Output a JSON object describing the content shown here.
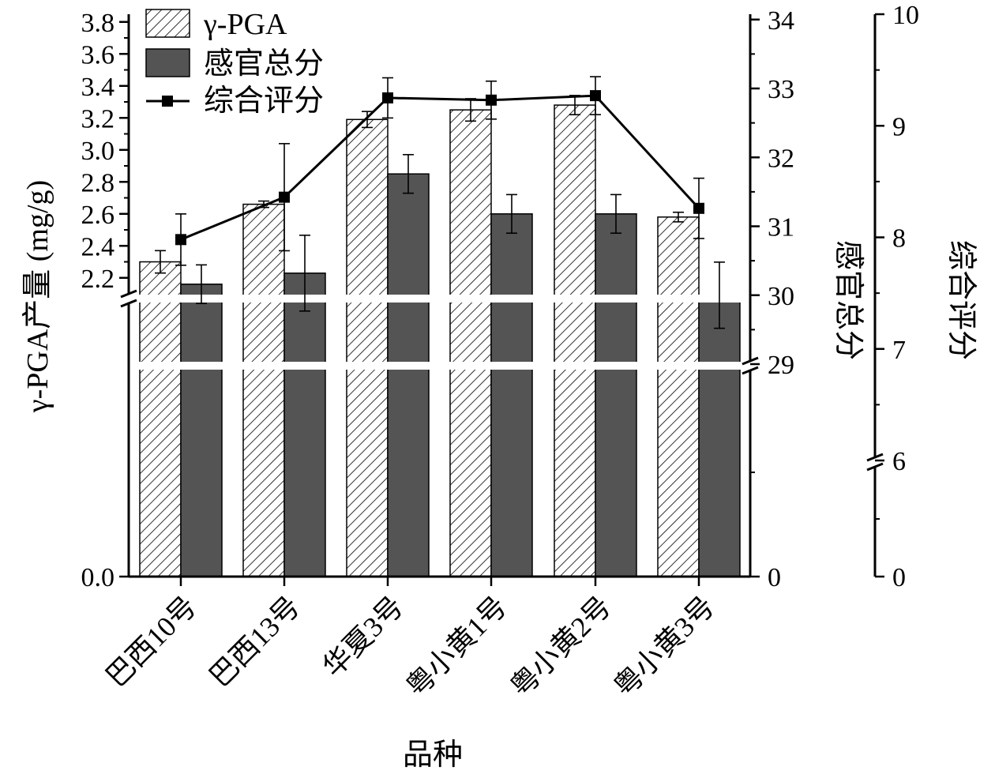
{
  "chart_data": {
    "type": "bar",
    "categories": [
      "巴西10号",
      "巴西13号",
      "华夏3号",
      "粤小黄1号",
      "粤小黄2号",
      "粤小黄3号"
    ],
    "xlabel": "品种",
    "series": [
      {
        "name": "γ-PGA",
        "kind": "bar",
        "axis": "left",
        "pattern": "hatched",
        "values": [
          2.3,
          2.66,
          3.19,
          3.25,
          3.28,
          2.58
        ],
        "errors": [
          0.07,
          0.02,
          0.05,
          0.07,
          0.06,
          0.03
        ]
      },
      {
        "name": "感官总分",
        "kind": "bar",
        "axis": "right1",
        "color": "#545454",
        "values": [
          30.16,
          30.32,
          31.76,
          31.18,
          31.18,
          30.0
        ],
        "errors": [
          0.28,
          0.55,
          0.28,
          0.28,
          0.28,
          0.48
        ]
      },
      {
        "name": "综合评分",
        "kind": "line",
        "axis": "right2",
        "marker": "square",
        "color": "#000000",
        "values": [
          7.98,
          8.36,
          9.25,
          9.23,
          9.27,
          8.26
        ],
        "errors": [
          0.23,
          0.48,
          0.18,
          0.17,
          0.17,
          0.27
        ]
      }
    ],
    "axes": {
      "left": {
        "label": "γ-PGA产量 (mg/g)",
        "range": [
          0.0,
          3.8
        ],
        "break": [
          0.0,
          2.1
        ],
        "ticks": [
          0.0,
          2.2,
          2.4,
          2.6,
          2.8,
          3.0,
          3.2,
          3.4,
          3.6,
          3.8
        ],
        "tick_labels": [
          "0.0",
          "2.2",
          "2.4",
          "2.6",
          "2.8",
          "3.0",
          "3.2",
          "3.4",
          "3.6",
          "3.8"
        ]
      },
      "right1": {
        "label": "感官总分",
        "range": [
          0,
          34
        ],
        "break": [
          0,
          29
        ],
        "ticks": [
          0,
          29,
          30,
          31,
          32,
          33,
          34
        ],
        "tick_labels": [
          "0",
          "29",
          "30",
          "31",
          "32",
          "33",
          "34"
        ]
      },
      "right2": {
        "label": "综合评分",
        "range": [
          0,
          10
        ],
        "break": [
          0,
          6
        ],
        "ticks": [
          0,
          6,
          7,
          8,
          9,
          10
        ],
        "tick_labels": [
          "0",
          "6",
          "7",
          "8",
          "9",
          "10"
        ]
      }
    },
    "legend": {
      "placement": "top-left",
      "entries": [
        "γ-PGA",
        "感官总分",
        "综合评分"
      ]
    }
  }
}
